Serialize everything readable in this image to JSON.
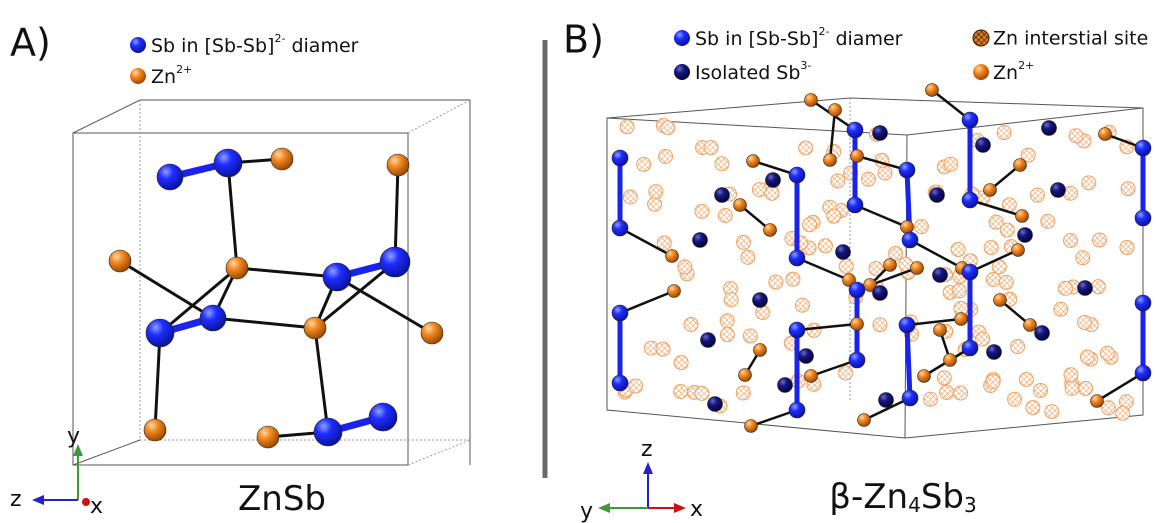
{
  "panels": [
    {
      "label": "A)",
      "legend": [
        {
          "text": "Sb in [Sb-Sb]",
          "sup": "2-",
          "after": " diamer"
        },
        {
          "text": "Zn",
          "sup": "2+"
        }
      ],
      "axes": {
        "up": "y",
        "left": "z",
        "depth": "x"
      },
      "caption": [
        {
          "text": "ZnSb"
        }
      ]
    },
    {
      "label": "B)",
      "legend": [
        {
          "text": "Sb in [Sb-Sb]",
          "sup": "2-",
          "after": " diamer"
        },
        {
          "text": "Zn interstial site"
        },
        {
          "text": "Isolated Sb",
          "sup": "3-"
        },
        {
          "text": "Zn",
          "sup": "2+"
        }
      ],
      "axes": {
        "up": "z",
        "left": "y",
        "right": "x"
      },
      "caption": [
        {
          "text": "β-Zn",
          "sub": "4"
        },
        {
          "text": "Sb",
          "sub": "3"
        }
      ]
    }
  ]
}
